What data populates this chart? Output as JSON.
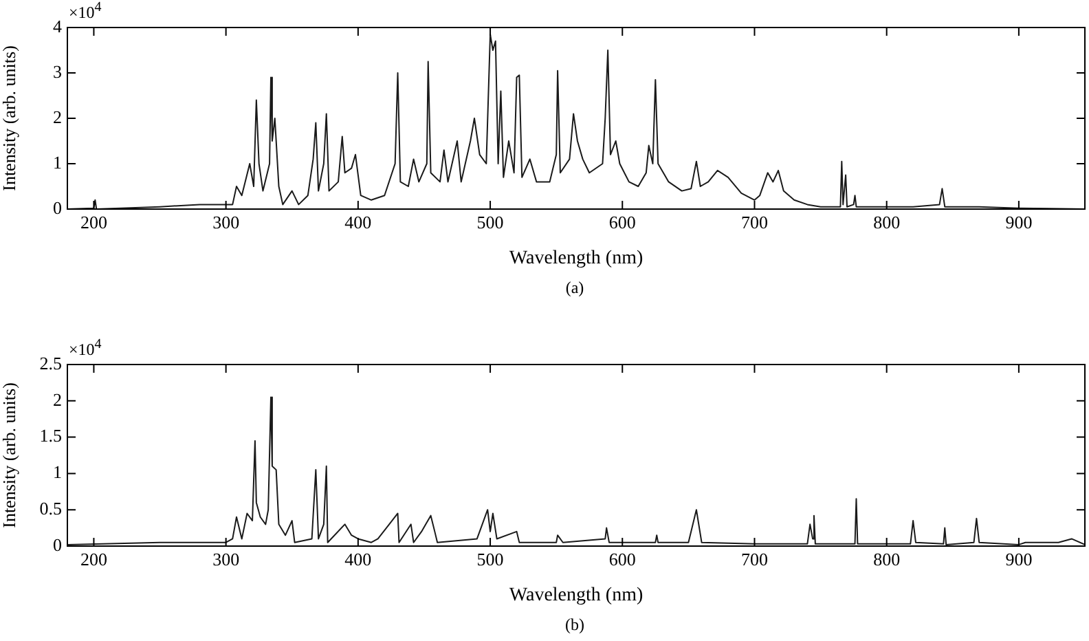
{
  "chart_data": [
    {
      "type": "line",
      "xlabel": "Wavelength (nm)",
      "ylabel": "Intensity (arb. units)",
      "annotations": [
        "×10$^{4}$",
        "(a)"
      ],
      "color": "#1a1a1a",
      "xlim": [
        180,
        950
      ],
      "xticks": [
        200,
        300,
        400,
        500,
        600,
        700,
        800,
        900
      ],
      "ylim": [
        0,
        4
      ],
      "yticks": [
        0,
        1,
        2,
        3,
        4
      ],
      "grid": false,
      "marker": "none",
      "x": [
        180,
        200,
        201,
        202,
        250,
        280,
        300,
        305,
        308,
        312,
        318,
        321,
        323,
        325,
        328,
        333,
        334,
        335,
        337,
        340,
        343,
        350,
        355,
        362,
        366,
        368,
        370,
        374,
        376,
        378,
        385,
        388,
        390,
        395,
        398,
        402,
        410,
        420,
        428,
        430,
        432,
        438,
        442,
        446,
        452,
        453,
        455,
        462,
        465,
        468,
        475,
        478,
        485,
        488,
        492,
        497,
        500,
        502,
        504,
        506,
        508,
        510,
        514,
        518,
        520,
        522,
        524,
        530,
        535,
        545,
        550,
        551,
        553,
        560,
        563,
        566,
        570,
        575,
        585,
        587,
        589,
        591,
        595,
        598,
        605,
        612,
        618,
        620,
        623,
        625,
        627,
        635,
        645,
        652,
        656,
        659,
        665,
        672,
        680,
        690,
        700,
        704,
        710,
        714,
        718,
        722,
        730,
        740,
        750,
        765,
        766,
        767,
        769,
        770,
        775,
        776,
        777,
        800,
        820,
        840,
        842,
        844,
        870,
        900,
        950
      ],
      "values": [
        0,
        0.02,
        0.2,
        0,
        0.05,
        0.1,
        0.1,
        0.1,
        0.5,
        0.3,
        1,
        0.5,
        2.4,
        1,
        0.4,
        1,
        2.9,
        1.5,
        2,
        0.5,
        0.1,
        0.4,
        0.1,
        0.3,
        1.1,
        1.9,
        0.4,
        1,
        2.1,
        0.4,
        0.6,
        1.6,
        0.8,
        0.9,
        1.2,
        0.3,
        0.2,
        0.3,
        1,
        3,
        0.6,
        0.5,
        1.1,
        0.6,
        1,
        3.25,
        0.8,
        0.6,
        1.3,
        0.6,
        1.5,
        0.6,
        1.5,
        2,
        1.2,
        1,
        3.85,
        3.5,
        3.7,
        1,
        2.6,
        0.7,
        1.5,
        0.8,
        2.9,
        2.95,
        0.7,
        1.1,
        0.6,
        0.6,
        1.2,
        3.05,
        0.8,
        1.1,
        2.1,
        1.5,
        1.1,
        0.8,
        1,
        2,
        3.5,
        1.2,
        1.5,
        1,
        0.6,
        0.5,
        0.8,
        1.4,
        1,
        2.85,
        1,
        0.6,
        0.4,
        0.45,
        1.05,
        0.5,
        0.6,
        0.85,
        0.7,
        0.35,
        0.2,
        0.3,
        0.8,
        0.6,
        0.85,
        0.4,
        0.2,
        0.1,
        0.05,
        0.05,
        1.05,
        0.1,
        0.75,
        0.05,
        0.1,
        0.3,
        0.05,
        0.05,
        0.05,
        0.1,
        0.45,
        0.05,
        0.05,
        0.02,
        0
      ]
    },
    {
      "type": "line",
      "xlabel": "Wavelength (nm)",
      "ylabel": "Intensity (arb. units)",
      "annotations": [
        "×10$^{4}$",
        "(b)"
      ],
      "color": "#1a1a1a",
      "xlim": [
        180,
        950
      ],
      "xticks": [
        200,
        300,
        400,
        500,
        600,
        700,
        800,
        900
      ],
      "ylim": [
        0,
        2.5
      ],
      "yticks": [
        0,
        0.5,
        1,
        1.5,
        2,
        2.5
      ],
      "grid": false,
      "marker": "none",
      "x": [
        180,
        250,
        280,
        300,
        305,
        308,
        312,
        316,
        320,
        322,
        323,
        326,
        330,
        332,
        334,
        335,
        338,
        340,
        345,
        350,
        352,
        365,
        368,
        370,
        374,
        376,
        377,
        390,
        395,
        400,
        410,
        415,
        430,
        431,
        440,
        442,
        448,
        455,
        458,
        460,
        490,
        498,
        500,
        502,
        505,
        520,
        522,
        550,
        551,
        555,
        587,
        588,
        590,
        625,
        626,
        627,
        650,
        656,
        660,
        700,
        740,
        742,
        744,
        745,
        746,
        776,
        777,
        778,
        818,
        820,
        822,
        843,
        844,
        845,
        866,
        868,
        870,
        900,
        905,
        930,
        940,
        950
      ],
      "values": [
        0.02,
        0.05,
        0.05,
        0.05,
        0.1,
        0.4,
        0.1,
        0.45,
        0.35,
        1.45,
        0.6,
        0.4,
        0.3,
        0.5,
        2.05,
        1.1,
        1.05,
        0.3,
        0.15,
        0.35,
        0.05,
        0.1,
        1.05,
        0.1,
        0.3,
        1.1,
        0.05,
        0.3,
        0.15,
        0.1,
        0.05,
        0.1,
        0.45,
        0.05,
        0.3,
        0.05,
        0.2,
        0.42,
        0.2,
        0.05,
        0.1,
        0.5,
        0.2,
        0.45,
        0.1,
        0.2,
        0.05,
        0.05,
        0.15,
        0.05,
        0.1,
        0.25,
        0.05,
        0.05,
        0.15,
        0.05,
        0.05,
        0.5,
        0.05,
        0.03,
        0.03,
        0.3,
        0.1,
        0.42,
        0.03,
        0.03,
        0.65,
        0.03,
        0.03,
        0.35,
        0.05,
        0.03,
        0.25,
        0.02,
        0.05,
        0.38,
        0.05,
        0.02,
        0.05,
        0.05,
        0.1,
        0.02
      ]
    }
  ]
}
